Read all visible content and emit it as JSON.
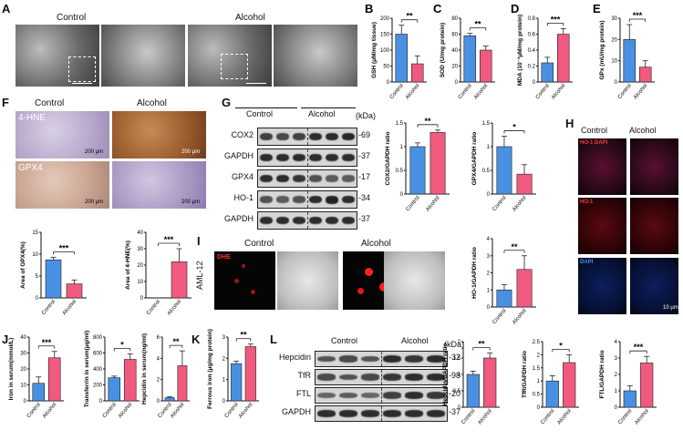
{
  "colors": {
    "control": "#4a90e2",
    "alcohol": "#f05a7e",
    "axis": "#111111"
  },
  "panels": {
    "A": {
      "label": "A",
      "control": "Control",
      "alcohol": "Alcohol",
      "scale": [
        "1000 nm",
        "1000 nm"
      ]
    },
    "F": {
      "label": "F",
      "control": "Control",
      "alcohol": "Alcohol",
      "row1": "4-HNE",
      "row2": "GPX4",
      "scale": [
        "200 μm",
        "200 μm",
        "200 μm",
        "200 μm"
      ]
    },
    "G": {
      "label": "G",
      "control": "Control",
      "alcohol": "Alcohol",
      "kda": "(kDa)",
      "rows": [
        {
          "name": "COX2",
          "kda": "-69"
        },
        {
          "name": "GAPDH",
          "kda": "-37"
        },
        {
          "name": "GPX4",
          "kda": "-17"
        },
        {
          "name": "HO-1",
          "kda": "-34"
        },
        {
          "name": "GAPDH",
          "kda": "-37"
        }
      ]
    },
    "H": {
      "label": "H",
      "control": "Control",
      "alcohol": "Alcohol",
      "merge": "HO-1 DAPI",
      "ho1": "HO-1",
      "dapi": "DAPI",
      "scale": "10 μm"
    },
    "I": {
      "label": "I",
      "control": "Control",
      "alcohol": "Alcohol",
      "dhe": "DHE",
      "cell": "AML-12",
      "scale": "10 μm"
    },
    "L": {
      "label": "L",
      "control": "Control",
      "alcohol": "Alcohol",
      "kda": "(kDa)",
      "rows": [
        {
          "name": "Hepcidin",
          "kda": "-32"
        },
        {
          "name": "TfR",
          "kda": "-98"
        },
        {
          "name": "FTL",
          "kda": "-20"
        },
        {
          "name": "GAPDH",
          "kda": "-37"
        }
      ]
    }
  },
  "chart_data": [
    {
      "id": "B",
      "type": "bar",
      "categories": [
        "Control",
        "Alcohol"
      ],
      "values": [
        150,
        57
      ],
      "errors": [
        28,
        25
      ],
      "ylabel": "GSH (μM/mg tissue)",
      "yticks": [
        0,
        50,
        100,
        150,
        200
      ],
      "ylim": [
        0,
        200
      ],
      "sig": "**"
    },
    {
      "id": "C",
      "type": "bar",
      "categories": [
        "Control",
        "Alcohol"
      ],
      "values": [
        58,
        40
      ],
      "errors": [
        3,
        5
      ],
      "ylabel": "SOD (U/mg protein)",
      "yticks": [
        0,
        20,
        40,
        60,
        80
      ],
      "ylim": [
        0,
        80
      ],
      "sig": "**"
    },
    {
      "id": "D",
      "type": "bar",
      "categories": [
        "Control",
        "Alcohol"
      ],
      "values": [
        0.24,
        0.6
      ],
      "errors": [
        0.07,
        0.07
      ],
      "ylabel": "MDA (10⁻³μM/mg protein)",
      "yticks": [
        0.0,
        0.2,
        0.4,
        0.6,
        0.8
      ],
      "ylim": [
        0,
        0.8
      ],
      "sig": "***"
    },
    {
      "id": "E",
      "type": "bar",
      "categories": [
        "Control",
        "Alcohol"
      ],
      "values": [
        20,
        7
      ],
      "errors": [
        7,
        3
      ],
      "ylabel": "GPx (mU/mg protein)",
      "yticks": [
        0,
        10,
        20,
        30
      ],
      "ylim": [
        0,
        30
      ],
      "sig": "***"
    },
    {
      "id": "F1",
      "type": "bar",
      "categories": [
        "Control",
        "Alcohol"
      ],
      "values": [
        8.7,
        3.2
      ],
      "errors": [
        0.6,
        0.9
      ],
      "ylabel": "Area of GPX4(%)",
      "yticks": [
        0,
        5,
        10,
        15
      ],
      "ylim": [
        0,
        15
      ],
      "sig": "***"
    },
    {
      "id": "F2",
      "type": "bar",
      "categories": [
        "Control",
        "Alcohol"
      ],
      "values": [
        0,
        22
      ],
      "errors": [
        0,
        8
      ],
      "ylabel": "Area of 4-HNE(%)",
      "yticks": [
        0,
        10,
        20,
        30,
        40
      ],
      "ylim": [
        0,
        40
      ],
      "sig": "***"
    },
    {
      "id": "G1",
      "type": "bar",
      "categories": [
        "Control",
        "Alcohol"
      ],
      "values": [
        1.0,
        1.3
      ],
      "errors": [
        0.08,
        0.05
      ],
      "ylabel": "COX2/GAPDH ratio",
      "yticks": [
        0.0,
        0.5,
        1.0,
        1.5
      ],
      "ylim": [
        0,
        1.5
      ],
      "sig": "**"
    },
    {
      "id": "G2",
      "type": "bar",
      "categories": [
        "Control",
        "Alcohol"
      ],
      "values": [
        1.0,
        0.42
      ],
      "errors": [
        0.22,
        0.2
      ],
      "ylabel": "GPX4/GAPDH ratio",
      "yticks": [
        0.0,
        0.5,
        1.0,
        1.5
      ],
      "ylim": [
        0,
        1.5
      ],
      "sig": "*"
    },
    {
      "id": "G3",
      "type": "bar",
      "categories": [
        "Control",
        "Alcohol"
      ],
      "values": [
        1.0,
        2.2
      ],
      "errors": [
        0.3,
        0.8
      ],
      "ylabel": "HO-1/GAPDH ratio",
      "yticks": [
        0,
        1,
        2,
        3,
        4
      ],
      "ylim": [
        0,
        4
      ],
      "sig": "**"
    },
    {
      "id": "J1",
      "type": "bar",
      "categories": [
        "Control",
        "Alcohol"
      ],
      "values": [
        11,
        27
      ],
      "errors": [
        4,
        4
      ],
      "ylabel": "Iron in serum(mmol/L)",
      "yticks": [
        0,
        10,
        20,
        30,
        40
      ],
      "ylim": [
        0,
        40
      ],
      "sig": "***"
    },
    {
      "id": "J2",
      "type": "bar",
      "categories": [
        "Control",
        "Alcohol"
      ],
      "values": [
        290,
        520
      ],
      "errors": [
        20,
        70
      ],
      "ylabel": "Transferrin in serum(μg/ml)",
      "yticks": [
        0,
        200,
        400,
        600,
        800
      ],
      "ylim": [
        0,
        800
      ],
      "sig": "*"
    },
    {
      "id": "J3",
      "type": "bar",
      "categories": [
        "Control",
        "Alcohol"
      ],
      "values": [
        0.3,
        3.3
      ],
      "errors": [
        0.1,
        1.4
      ],
      "ylabel": "Hepcidin in serum(ng/ml)",
      "yticks": [
        0,
        2,
        4,
        6
      ],
      "ylim": [
        0,
        6
      ],
      "sig": "**"
    },
    {
      "id": "K",
      "type": "bar",
      "categories": [
        "Control",
        "Alcohol"
      ],
      "values": [
        1.75,
        2.55
      ],
      "errors": [
        0.12,
        0.12
      ],
      "ylabel": "Ferrous iron (μg/mg protein)",
      "yticks": [
        0,
        1,
        2,
        3
      ],
      "ylim": [
        0,
        3
      ],
      "sig": "**"
    },
    {
      "id": "L1",
      "type": "bar",
      "categories": [
        "Control",
        "Alcohol"
      ],
      "values": [
        1.0,
        1.5
      ],
      "errors": [
        0.1,
        0.15
      ],
      "ylabel": "Hepcidin/GAPDH ratio",
      "yticks": [
        0.0,
        0.5,
        1.0,
        1.5,
        2.0
      ],
      "ylim": [
        0,
        2.0
      ],
      "sig": "**"
    },
    {
      "id": "L2",
      "type": "bar",
      "categories": [
        "Control",
        "Alcohol"
      ],
      "values": [
        1.0,
        1.7
      ],
      "errors": [
        0.2,
        0.3
      ],
      "ylabel": "TfR/GAPDH ratio",
      "yticks": [
        0.0,
        0.5,
        1.0,
        1.5,
        2.0,
        2.5
      ],
      "ylim": [
        0,
        2.5
      ],
      "sig": "*"
    },
    {
      "id": "L3",
      "type": "bar",
      "categories": [
        "Control",
        "Alcohol"
      ],
      "values": [
        1.0,
        2.7
      ],
      "errors": [
        0.3,
        0.4
      ],
      "ylabel": "FTL/GAPDH ratio",
      "yticks": [
        0,
        1,
        2,
        3,
        4
      ],
      "ylim": [
        0,
        4
      ],
      "sig": "***"
    }
  ]
}
